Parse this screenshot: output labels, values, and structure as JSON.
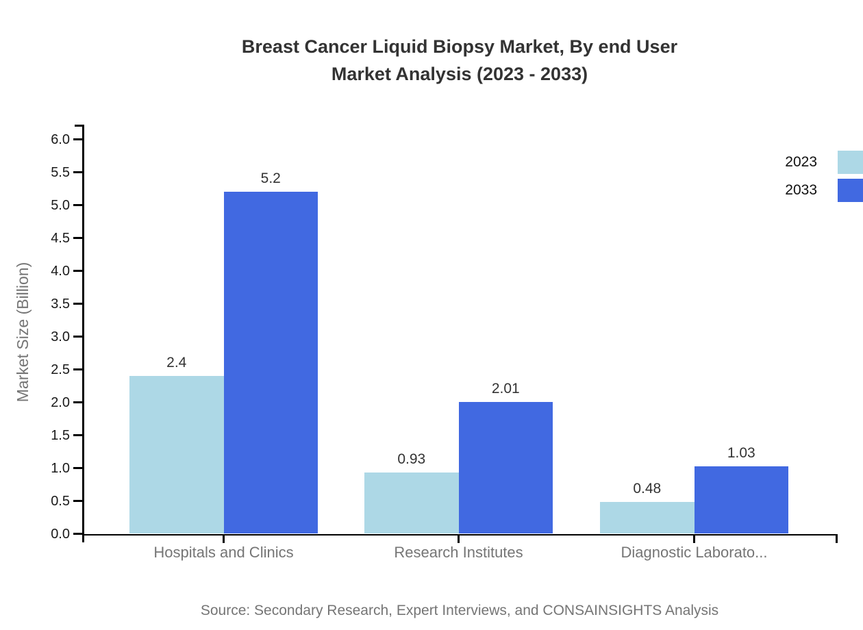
{
  "title": {
    "line1": "Breast Cancer Liquid Biopsy Market, By end User",
    "line2": "Market Analysis (2023 - 2033)"
  },
  "source": "Source: Secondary Research, Expert Interviews, and CONSAINSIGHTS Analysis",
  "chart_data": {
    "type": "bar",
    "title": "Breast Cancer Liquid Biopsy Market, By end User Market Analysis (2023 - 2033)",
    "categories": [
      "Hospitals and Clinics",
      "Research Institutes",
      "Diagnostic Laborato..."
    ],
    "series": [
      {
        "name": "2023",
        "color": "#ADD8E6",
        "values": [
          2.4,
          0.93,
          0.48
        ]
      },
      {
        "name": "2033",
        "color": "#4169E1",
        "values": [
          5.2,
          2.01,
          1.03
        ]
      }
    ],
    "value_labels": [
      [
        "2.4",
        "0.93",
        "0.48"
      ],
      [
        "5.2",
        "2.01",
        "1.03"
      ]
    ],
    "xlabel": "",
    "ylabel": "Market Size (Billion)",
    "ylim": [
      0,
      6.2
    ],
    "ytick_step": 0.5,
    "ytick_min": 0.0,
    "ytick_max": 6.0,
    "grid": false,
    "legend_position": "top-right",
    "axis_color": "#000000",
    "text_gray": "#757575"
  }
}
